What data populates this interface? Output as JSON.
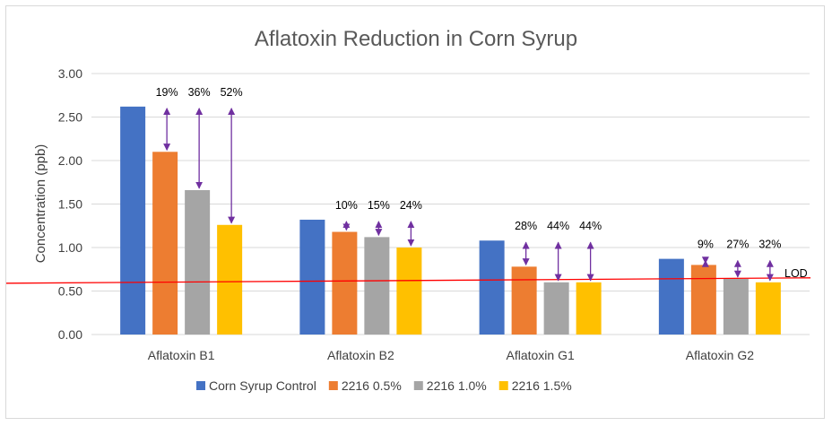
{
  "chart_data": {
    "type": "bar",
    "title": "Aflatoxin Reduction in Corn Syrup",
    "ylabel": "Concentration (ppb)",
    "xlabel": "",
    "ylim": [
      0,
      3.0
    ],
    "yticks": [
      "0.00",
      "0.50",
      "1.00",
      "1.50",
      "2.00",
      "2.50",
      "3.00"
    ],
    "grid": true,
    "legend_position": "bottom",
    "categories": [
      "Aflatoxin B1",
      "Aflatoxin B2",
      "Aflatoxin G1",
      "Aflatoxin G2"
    ],
    "series": [
      {
        "name": "Corn Syrup Control",
        "color": "#4472c4",
        "values": [
          2.62,
          1.32,
          1.08,
          0.87
        ]
      },
      {
        "name": "2216 0.5%",
        "color": "#ed7d31",
        "values": [
          2.1,
          1.18,
          0.78,
          0.8
        ]
      },
      {
        "name": "2216 1.0%",
        "color": "#a5a5a5",
        "values": [
          1.66,
          1.12,
          0.6,
          0.64
        ]
      },
      {
        "name": "2216 1.5%",
        "color": "#ffc000",
        "values": [
          1.26,
          1.0,
          0.6,
          0.6
        ]
      }
    ],
    "reductions": [
      [
        "19%",
        "36%",
        "52%"
      ],
      [
        "10%",
        "15%",
        "24%"
      ],
      [
        "28%",
        "44%",
        "44%"
      ],
      [
        "9%",
        "27%",
        "32%"
      ]
    ],
    "arrow_color": "#7030a0",
    "lod": {
      "label": "LOD",
      "value": 0.6,
      "color": "#ff0000"
    }
  }
}
